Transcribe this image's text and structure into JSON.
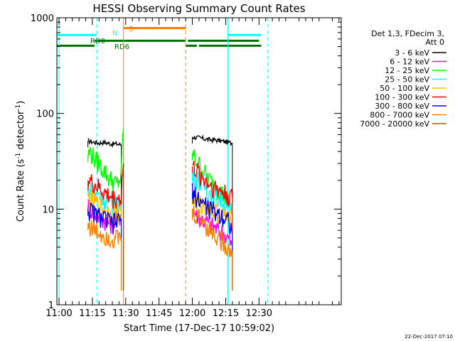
{
  "chart_data": {
    "type": "line",
    "title": "HESSI Observing Summary Count Rates",
    "xlabel": "Start Time (17-Dec-17 10:59:02)",
    "ylabel": "Count Rate (s⁻¹ detector⁻¹)",
    "ylabel_parts": {
      "main": "Count Rate (s",
      "sup1": "-1",
      "mid": " detector",
      "sup2": "-1",
      "end": ")"
    },
    "y_scale": "log",
    "ylim": [
      1,
      1000
    ],
    "xlim": [
      "10:59:02",
      "13:07:00"
    ],
    "x_ticks": [
      "11:00",
      "11:15",
      "11:30",
      "11:45",
      "12:00",
      "12:15",
      "12:30"
    ],
    "y_ticks": [
      "1",
      "10",
      "100",
      "1000"
    ],
    "legend_header": [
      "Det 1,3, FDecim 3,",
      "Att 0"
    ],
    "legend_position": "right",
    "series": [
      {
        "name": "3 - 6 keV",
        "color": "#000000",
        "segments": [
          {
            "x": [
              "11:13",
              "11:14",
              "11:16",
              "11:18",
              "11:20",
              "11:22",
              "11:24",
              "11:26",
              "11:28"
            ],
            "y": [
              52,
              51,
              50,
              49,
              50,
              49,
              48,
              48,
              47
            ]
          },
          {
            "x": [
              "12:00",
              "12:02",
              "12:04",
              "12:06",
              "12:08",
              "12:10",
              "12:12",
              "12:14",
              "12:16",
              "12:18"
            ],
            "y": [
              57,
              56,
              55,
              54,
              53,
              53,
              52,
              51,
              50,
              49
            ]
          }
        ]
      },
      {
        "name": "6 - 12 keV",
        "color": "#ff00ff",
        "segments": [
          {
            "x": [
              "11:13",
              "11:16",
              "11:20",
              "11:24",
              "11:28"
            ],
            "y": [
              11,
              9,
              8,
              7,
              9
            ]
          },
          {
            "x": [
              "12:00",
              "12:04",
              "12:08",
              "12:12",
              "12:16",
              "12:18"
            ],
            "y": [
              10,
              8,
              7,
              6,
              5,
              4
            ]
          }
        ]
      },
      {
        "name": "12 - 25 keV",
        "color": "#00ff00",
        "segments": [
          {
            "x": [
              "11:13",
              "11:14",
              "11:16",
              "11:18",
              "11:20",
              "11:22",
              "11:24",
              "11:26",
              "11:28",
              "11:29"
            ],
            "y": [
              36,
              40,
              34,
              30,
              26,
              22,
              20,
              18,
              22,
              70
            ]
          },
          {
            "x": [
              "12:00",
              "12:02",
              "12:04",
              "12:06",
              "12:08",
              "12:10",
              "12:12",
              "12:14",
              "12:16",
              "12:18"
            ],
            "y": [
              38,
              32,
              27,
              23,
              20,
              18,
              16,
              14,
              12,
              10
            ]
          }
        ]
      },
      {
        "name": "25 - 50 keV",
        "color": "#00ffff",
        "segments": [
          {
            "x": [
              "11:13",
              "11:16",
              "11:20",
              "11:24",
              "11:28"
            ],
            "y": [
              16,
              15,
              13,
              11,
              12
            ]
          },
          {
            "x": [
              "12:00",
              "12:04",
              "12:08",
              "12:12",
              "12:16",
              "12:18"
            ],
            "y": [
              23,
              19,
              15,
              13,
              11,
              9
            ]
          }
        ]
      },
      {
        "name": "50 - 100 keV",
        "color": "#ffbf00",
        "segments": [
          {
            "x": [
              "11:13",
              "11:16",
              "11:20",
              "11:24",
              "11:28"
            ],
            "y": [
              13,
              12,
              10,
              9,
              10
            ]
          },
          {
            "x": [
              "12:00",
              "12:04",
              "12:08",
              "12:12",
              "12:16",
              "12:18"
            ],
            "y": [
              13,
              11,
              10,
              9,
              8,
              7
            ]
          }
        ]
      },
      {
        "name": "100 - 300 keV",
        "color": "#ff0000",
        "segments": [
          {
            "x": [
              "11:13",
              "11:16",
              "11:20",
              "11:24",
              "11:28",
              "11:29"
            ],
            "y": [
              20,
              18,
              15,
              13,
              13,
              30
            ]
          },
          {
            "x": [
              "12:00",
              "12:04",
              "12:08",
              "12:12",
              "12:16",
              "12:18"
            ],
            "y": [
              28,
              22,
              18,
              16,
              14,
              13
            ]
          }
        ]
      },
      {
        "name": "300 - 800 keV",
        "color": "#0000ff",
        "segments": [
          {
            "x": [
              "11:13",
              "11:16",
              "11:20",
              "11:24",
              "11:28"
            ],
            "y": [
              10,
              9,
              8,
              7,
              8
            ]
          },
          {
            "x": [
              "12:00",
              "12:04",
              "12:08",
              "12:12",
              "12:16",
              "12:18"
            ],
            "y": [
              15,
              12,
              10,
              9,
              8,
              6
            ]
          }
        ]
      },
      {
        "name": "800 - 7000 keV",
        "color": "#ff8000",
        "segments": [
          {
            "x": [
              "11:13",
              "11:16",
              "11:20",
              "11:24",
              "11:28"
            ],
            "y": [
              7,
              6,
              5.5,
              5,
              5
            ]
          },
          {
            "x": [
              "12:00",
              "12:04",
              "12:08",
              "12:12",
              "12:16",
              "12:18"
            ],
            "y": [
              9,
              8,
              6,
              5,
              4,
              3.5
            ]
          }
        ]
      },
      {
        "name": "7000 - 20000 keV",
        "color": "#996600",
        "segments": []
      }
    ],
    "flag_bars": [
      {
        "label": "N",
        "color": "#00ffff",
        "y": 660,
        "ranges": [
          [
            "10:59:02",
            "11:17"
          ],
          [
            "12:16",
            "12:31"
          ]
        ]
      },
      {
        "label": "S",
        "color": "#ff8000",
        "y": 780,
        "ranges": [
          [
            "11:29",
            "11:57"
          ]
        ]
      },
      {
        "label": "RD0",
        "color": "#007000",
        "y": 575,
        "ranges": [
          [
            "11:16",
            "11:57"
          ],
          [
            "11:58",
            "12:30"
          ]
        ]
      },
      {
        "label": "RD6",
        "color": "#007000",
        "y": 510,
        "ranges": [
          [
            "10:59:02",
            "11:16"
          ],
          [
            "11:57",
            "12:02"
          ],
          [
            "12:03",
            "12:31"
          ]
        ]
      }
    ],
    "vlines": [
      {
        "x": "11:00",
        "color": "#00ffff",
        "style": "solid"
      },
      {
        "x": "11:17",
        "color": "#00ffff",
        "style": "dashed"
      },
      {
        "x": "11:29",
        "color": "#ff8000",
        "style": "solid"
      },
      {
        "x": "11:57",
        "color": "#ff8000",
        "style": "dashed"
      },
      {
        "x": "12:16",
        "color": "#00ffff",
        "style": "solid"
      },
      {
        "x": "12:34",
        "color": "#00ffff",
        "style": "dashed"
      }
    ],
    "footer_date": "22-Dec-2017 07:10"
  }
}
